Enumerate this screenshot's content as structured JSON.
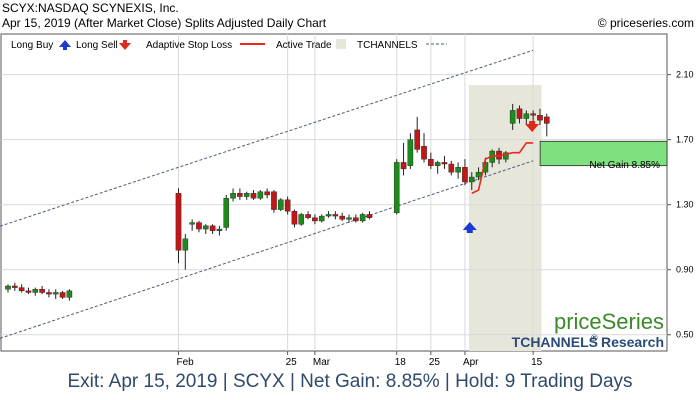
{
  "header": {
    "line1": "SCYX:NASDAQ SCYNEXIS, Inc.",
    "line2": "Apr 15, 2019 (After Market Close)  Splits Adjusted Daily Chart",
    "copyright": "© priceseries.com"
  },
  "legend": {
    "long_buy": "Long Buy",
    "long_sell": "Long Sell",
    "adaptive_stop": "Adaptive Stop Loss",
    "active_trade": "Active Trade",
    "tchannels": "TCHANNELS"
  },
  "branding": {
    "name": "priceSeries",
    "sub": "TCHANNELS",
    "reg": "®",
    "research": "Research"
  },
  "annotation": "Net Gain 8.85%",
  "footer": "Exit: Apr 15, 2019 | SCYX | Net Gain: 8.85% | Hold: 9 Trading Days",
  "colors": {
    "up": "#1e8a1e",
    "down": "#c01818",
    "stop": "#e8291c",
    "active_bg": "#e6e6da",
    "gain_box": "#7fe07f",
    "channel": "#4b5e7a",
    "buy_arrow": "#1a3ad1",
    "sell_arrow": "#e0281c",
    "brand_green": "#3a8a2a",
    "brand_blue": "#2a4a7a"
  },
  "chart_data": {
    "type": "candlestick",
    "ylim": [
      0.4,
      2.35
    ],
    "yticks": [
      2.1,
      1.7,
      1.3,
      0.9,
      0.5
    ],
    "yticks_labels": [
      "2.10",
      "1.70",
      "1.30",
      "0.90",
      "0.50"
    ],
    "xticks": [
      {
        "label": "Feb",
        "index": 25
      },
      {
        "label": "25",
        "index": 41
      },
      {
        "label": "Mar",
        "index": 45
      },
      {
        "label": "18",
        "index": 57
      },
      {
        "label": "25",
        "index": 62
      },
      {
        "label": "Apr",
        "index": 67
      },
      {
        "label": "15",
        "index": 77
      }
    ],
    "candles": [
      [
        0.78,
        0.81,
        0.76,
        0.8
      ],
      [
        0.8,
        0.82,
        0.77,
        0.79
      ],
      [
        0.79,
        0.81,
        0.76,
        0.77
      ],
      [
        0.77,
        0.79,
        0.75,
        0.76
      ],
      [
        0.76,
        0.79,
        0.74,
        0.78
      ],
      [
        0.78,
        0.8,
        0.75,
        0.76
      ],
      [
        0.76,
        0.78,
        0.73,
        0.75
      ],
      [
        0.75,
        0.78,
        0.72,
        0.76
      ],
      [
        0.76,
        0.77,
        0.72,
        0.73
      ],
      [
        0.73,
        0.78,
        0.71,
        0.77
      ],
      [
        1.37,
        1.4,
        0.94,
        1.02
      ],
      [
        1.02,
        1.12,
        0.9,
        1.09
      ],
      [
        1.18,
        1.21,
        1.14,
        1.19
      ],
      [
        1.19,
        1.2,
        1.13,
        1.15
      ],
      [
        1.15,
        1.18,
        1.12,
        1.17
      ],
      [
        1.17,
        1.18,
        1.12,
        1.14
      ],
      [
        1.14,
        1.17,
        1.11,
        1.15
      ],
      [
        1.16,
        1.36,
        1.14,
        1.34
      ],
      [
        1.34,
        1.4,
        1.32,
        1.37
      ],
      [
        1.37,
        1.4,
        1.33,
        1.35
      ],
      [
        1.35,
        1.38,
        1.33,
        1.37
      ],
      [
        1.37,
        1.39,
        1.33,
        1.34
      ],
      [
        1.34,
        1.39,
        1.33,
        1.38
      ],
      [
        1.38,
        1.4,
        1.34,
        1.36
      ],
      [
        1.38,
        1.39,
        1.25,
        1.27
      ],
      [
        1.27,
        1.34,
        1.26,
        1.33
      ],
      [
        1.33,
        1.35,
        1.24,
        1.26
      ],
      [
        1.26,
        1.27,
        1.16,
        1.18
      ],
      [
        1.18,
        1.25,
        1.17,
        1.24
      ],
      [
        1.24,
        1.26,
        1.21,
        1.22
      ],
      [
        1.22,
        1.24,
        1.18,
        1.2
      ],
      [
        1.2,
        1.24,
        1.19,
        1.23
      ],
      [
        1.23,
        1.26,
        1.22,
        1.24
      ],
      [
        1.24,
        1.26,
        1.21,
        1.23
      ],
      [
        1.23,
        1.25,
        1.2,
        1.21
      ],
      [
        1.21,
        1.24,
        1.19,
        1.22
      ],
      [
        1.22,
        1.24,
        1.19,
        1.2
      ],
      [
        1.2,
        1.25,
        1.19,
        1.24
      ],
      [
        1.24,
        1.26,
        1.21,
        1.22
      ],
      [
        1.25,
        1.58,
        1.24,
        1.56
      ],
      [
        1.56,
        1.68,
        1.48,
        1.52
      ],
      [
        1.54,
        1.74,
        1.52,
        1.7
      ],
      [
        1.76,
        1.84,
        1.62,
        1.64
      ],
      [
        1.66,
        1.74,
        1.56,
        1.58
      ],
      [
        1.58,
        1.62,
        1.52,
        1.54
      ],
      [
        1.54,
        1.57,
        1.49,
        1.56
      ],
      [
        1.56,
        1.6,
        1.52,
        1.55
      ],
      [
        1.55,
        1.57,
        1.48,
        1.5
      ],
      [
        1.5,
        1.56,
        1.46,
        1.53
      ],
      [
        1.53,
        1.58,
        1.42,
        1.44
      ],
      [
        1.44,
        1.5,
        1.39,
        1.47
      ],
      [
        1.47,
        1.53,
        1.45,
        1.5
      ],
      [
        1.5,
        1.59,
        1.48,
        1.56
      ],
      [
        1.56,
        1.64,
        1.53,
        1.63
      ],
      [
        1.63,
        1.65,
        1.55,
        1.58
      ],
      [
        1.58,
        1.63,
        1.56,
        1.62
      ],
      [
        1.8,
        1.92,
        1.76,
        1.88
      ],
      [
        1.89,
        1.91,
        1.8,
        1.83
      ],
      [
        1.83,
        1.88,
        1.79,
        1.86
      ],
      [
        1.86,
        1.88,
        1.8,
        1.85
      ],
      [
        1.85,
        1.89,
        1.79,
        1.82
      ],
      [
        1.84,
        1.86,
        1.72,
        1.8
      ]
    ],
    "candle_x_index": [
      0,
      1,
      2,
      3,
      4,
      5,
      6,
      7,
      8,
      9,
      25,
      26,
      27,
      28,
      29,
      30,
      31,
      32,
      33,
      34,
      35,
      36,
      37,
      38,
      39,
      40,
      41,
      42,
      43,
      44,
      45,
      46,
      47,
      48,
      49,
      50,
      51,
      52,
      53,
      57,
      58,
      59,
      60,
      61,
      62,
      63,
      64,
      65,
      66,
      67,
      68,
      69,
      70,
      71,
      72,
      73,
      74,
      75,
      76,
      77,
      78,
      79
    ],
    "stop_loss": [
      {
        "index": 68,
        "value": 1.37
      },
      {
        "index": 69,
        "value": 1.39
      },
      {
        "index": 70,
        "value": 1.58
      },
      {
        "index": 71,
        "value": 1.6
      },
      {
        "index": 72,
        "value": 1.6
      },
      {
        "index": 73,
        "value": 1.61
      },
      {
        "index": 74,
        "value": 1.62
      },
      {
        "index": 75,
        "value": 1.62
      },
      {
        "index": 76,
        "value": 1.68
      },
      {
        "index": 77,
        "value": 1.68
      }
    ],
    "channel_upper": [
      {
        "index": 0,
        "value": 1.18
      },
      {
        "index": 77,
        "value": 2.25
      }
    ],
    "channel_lower": [
      {
        "index": 0,
        "value": 0.49
      },
      {
        "index": 77,
        "value": 1.57
      }
    ],
    "active_trade": {
      "from_index": 68,
      "to_index": 77
    },
    "long_buy_index": 68,
    "long_sell_index": 77,
    "gain_box": {
      "low": 1.54,
      "high": 1.69
    }
  }
}
